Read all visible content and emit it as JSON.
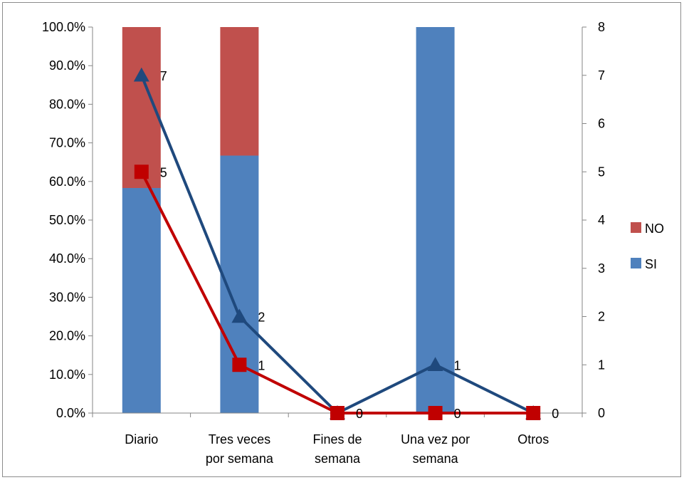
{
  "chart_data": {
    "type": "bar",
    "stacked": true,
    "categories": [
      [
        "Diario"
      ],
      [
        "Tres veces",
        "por semana"
      ],
      [
        "Fines de",
        "semana"
      ],
      [
        "Una vez por",
        "semana"
      ],
      [
        "Otros"
      ]
    ],
    "bar_series": [
      {
        "name": "SI",
        "color": "#4f81bd",
        "values": [
          0.583,
          0.667,
          0,
          1.0,
          0
        ]
      },
      {
        "name": "NO",
        "color": "#c0504d",
        "values": [
          0.417,
          0.333,
          0,
          0,
          0
        ]
      }
    ],
    "line_series": [
      {
        "color": "#1f497d",
        "marker": "triangle",
        "values": [
          7,
          2,
          0,
          1,
          0
        ],
        "labels": [
          "7",
          "2",
          "",
          "1",
          ""
        ]
      },
      {
        "color": "#c00000",
        "marker": "square",
        "values": [
          5,
          1,
          0,
          0,
          0
        ],
        "labels": [
          "5",
          "1",
          "0",
          "0",
          "0"
        ]
      }
    ],
    "y_left": {
      "min": 0,
      "max": 1.0,
      "ticks": [
        "0.0%",
        "10.0%",
        "20.0%",
        "30.0%",
        "40.0%",
        "50.0%",
        "60.0%",
        "70.0%",
        "80.0%",
        "90.0%",
        "100.0%"
      ]
    },
    "y_right": {
      "min": 0,
      "max": 8,
      "ticks": [
        "0",
        "1",
        "2",
        "3",
        "4",
        "5",
        "6",
        "7",
        "8"
      ]
    },
    "legend": {
      "position": "right",
      "entries": [
        "NO",
        "SI"
      ]
    },
    "grid": false,
    "title": "",
    "xlabel": "",
    "ylabel": ""
  }
}
